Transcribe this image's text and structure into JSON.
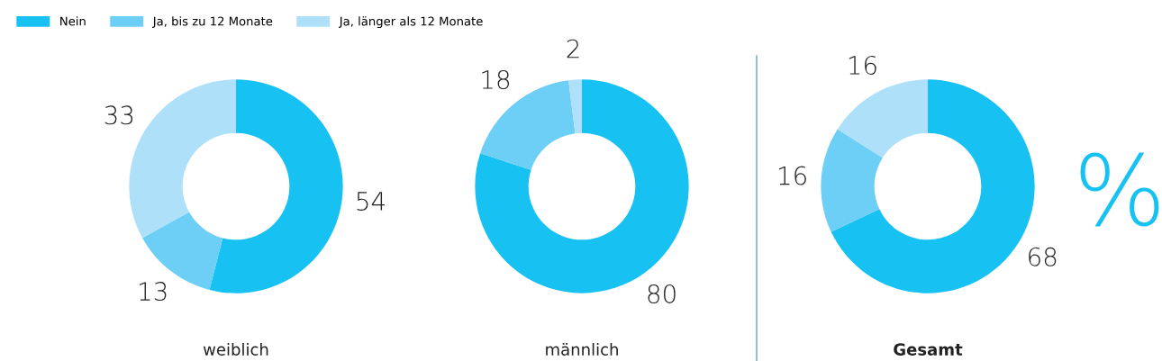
{
  "chart_data": [
    {
      "type": "donut",
      "title": "weiblich",
      "categories": [
        "Nein",
        "Ja, bis zu 12 Monate",
        "Ja, länger als 12 Monate"
      ],
      "values": [
        54,
        13,
        33
      ],
      "colors": [
        "#17c1f2",
        "#6dcff5",
        "#aee1f9"
      ],
      "data_labels": true,
      "legend": "top"
    },
    {
      "type": "donut",
      "title": "männlich",
      "categories": [
        null,
        null,
        null
      ],
      "values": [
        80,
        18,
        2
      ],
      "colors": [
        "#17c1f2",
        "#6dcff5",
        "#aee1f9"
      ],
      "data_labels": true
    },
    {
      "type": "donut",
      "title": "Gesamt",
      "categories": [
        null,
        null,
        null
      ],
      "values": [
        68,
        16,
        16
      ],
      "colors": [
        "#17c1f2",
        "#6dcff5",
        "#aee1f9"
      ],
      "data_labels": true,
      "annotations": [
        "%"
      ]
    }
  ]
}
